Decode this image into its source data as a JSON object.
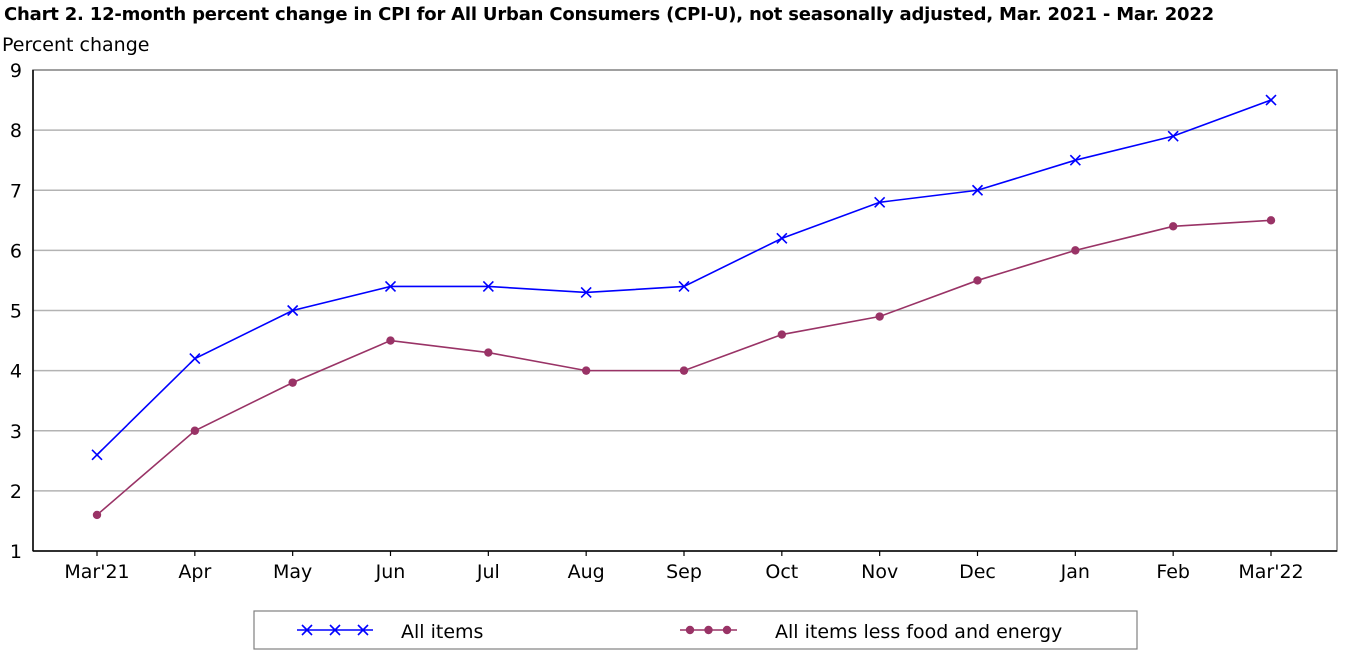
{
  "chart_data": {
    "type": "line",
    "title": "Chart 2. 12-month percent change in CPI for All Urban Consumers (CPI-U), not seasonally adjusted, Mar. 2021 - Mar. 2022",
    "ylabel": "Percent change",
    "xlabel": "",
    "categories": [
      "Mar'21",
      "Apr",
      "May",
      "Jun",
      "Jul",
      "Aug",
      "Sep",
      "Oct",
      "Nov",
      "Dec",
      "Jan",
      "Feb",
      "Mar'22"
    ],
    "ylim": [
      1,
      9
    ],
    "yticks": [
      "1",
      "2",
      "3",
      "4",
      "5",
      "6",
      "7",
      "8",
      "9"
    ],
    "grid": true,
    "legend_position": "bottom",
    "series": [
      {
        "name": "All items",
        "color": "#0000ff",
        "marker": "x",
        "values": [
          2.6,
          4.2,
          5.0,
          5.4,
          5.4,
          5.3,
          5.4,
          6.2,
          6.8,
          7.0,
          7.5,
          7.9,
          8.5
        ]
      },
      {
        "name": "All items less food and energy",
        "color": "#993366",
        "marker": "circle",
        "values": [
          1.6,
          3.0,
          3.8,
          4.5,
          4.3,
          4.0,
          4.0,
          4.6,
          4.9,
          5.5,
          6.0,
          6.4,
          6.5
        ]
      }
    ]
  }
}
